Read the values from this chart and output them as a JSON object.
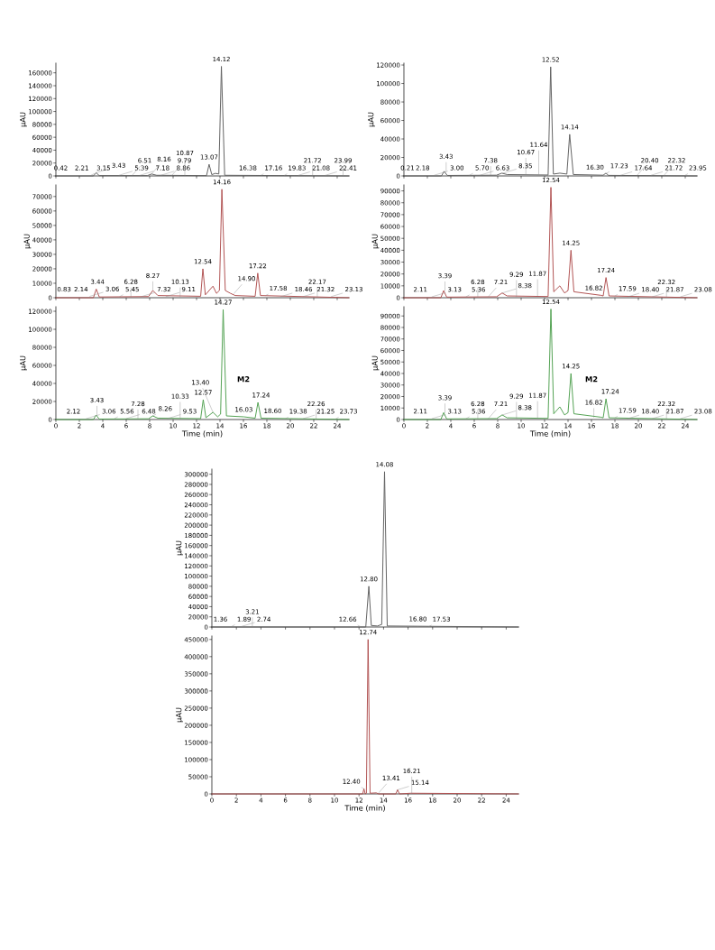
{
  "chart_data": [
    {
      "type": "line",
      "ylabel": "µAU",
      "tick_labels": "y",
      "grid": false,
      "legend": false,
      "xlim": [
        0,
        25
      ],
      "xticks": [
        0,
        2,
        4,
        6,
        8,
        10,
        12,
        14,
        16,
        18,
        20,
        22,
        24
      ],
      "ylim": [
        0,
        175000
      ],
      "yticks": [
        0,
        20000,
        40000,
        60000,
        80000,
        100000,
        120000,
        140000,
        160000
      ],
      "series": [
        {
          "color": "#606060",
          "x": [
            0,
            3.2,
            3.43,
            3.7,
            7.8,
            8.16,
            8.6,
            12.85,
            13.07,
            13.3,
            13.6,
            13.9,
            14.12,
            14.4,
            25
          ],
          "values": [
            0,
            0,
            5000,
            500,
            500,
            3000,
            1000,
            500,
            18000,
            2000,
            4000,
            3000,
            170000,
            1000,
            0
          ]
        }
      ],
      "annotations": [
        {
          "text": "0.42",
          "x": 0.42,
          "y": 1000
        },
        {
          "text": "2.21",
          "x": 2.21,
          "y": 1000
        },
        {
          "text": "3.15",
          "x": 3.0,
          "y": 1000
        },
        {
          "text": "3.43",
          "x": 3.43,
          "y": 5000
        },
        {
          "text": "5.39",
          "x": 5.39,
          "y": 1000
        },
        {
          "text": "6.51",
          "x": 6.51,
          "y": 1000
        },
        {
          "text": "7.18",
          "x": 7.18,
          "y": 1000
        },
        {
          "text": "8.16",
          "x": 8.16,
          "y": 3000
        },
        {
          "text": "8.86",
          "x": 8.95,
          "y": 1000
        },
        {
          "text": "9.79",
          "x": 9.9,
          "y": 1000
        },
        {
          "text": "10.87",
          "x": 11.0,
          "y": 1000
        },
        {
          "text": "13.07",
          "x": 13.07,
          "y": 18000
        },
        {
          "text": "14.12",
          "x": 14.12,
          "y": 170000
        },
        {
          "text": "16.38",
          "x": 16.38,
          "y": 1000
        },
        {
          "text": "17.16",
          "x": 17.5,
          "y": 1000
        },
        {
          "text": "19.83",
          "x": 19.5,
          "y": 1000
        },
        {
          "text": "21.08",
          "x": 20.7,
          "y": 1000
        },
        {
          "text": "21.72",
          "x": 21.9,
          "y": 1000
        },
        {
          "text": "22.41",
          "x": 23.0,
          "y": 1000
        },
        {
          "text": "23.99",
          "x": 24.5,
          "y": 1000
        }
      ]
    },
    {
      "type": "line",
      "ylabel": "µAU",
      "tick_labels": "y",
      "grid": false,
      "legend": false,
      "xlim": [
        0,
        25
      ],
      "xticks": [
        0,
        2,
        4,
        6,
        8,
        10,
        12,
        14,
        16,
        18,
        20,
        22,
        24
      ],
      "ylim": [
        0,
        78000
      ],
      "yticks": [
        0,
        10000,
        20000,
        30000,
        40000,
        50000,
        60000,
        70000
      ],
      "series": [
        {
          "color": "#b05050",
          "x": [
            0,
            3.2,
            3.44,
            3.7,
            7.9,
            8.27,
            8.7,
            12.35,
            12.54,
            12.75,
            13.4,
            13.7,
            13.95,
            14.16,
            14.45,
            14.9,
            15.3,
            17.0,
            17.22,
            17.45,
            25
          ],
          "values": [
            0,
            0,
            6000,
            500,
            800,
            5000,
            1500,
            1000,
            20000,
            2000,
            8000,
            3000,
            5000,
            75000,
            5000,
            3000,
            1500,
            1000,
            17000,
            1500,
            0
          ]
        }
      ],
      "annotations": [
        {
          "text": "0.83",
          "x": 0.7,
          "y": 800
        },
        {
          "text": "2.14",
          "x": 2.14,
          "y": 800
        },
        {
          "text": "3.06",
          "x": 2.9,
          "y": 1000
        },
        {
          "text": "3.44",
          "x": 3.55,
          "y": 6000
        },
        {
          "text": "5.45",
          "x": 5.45,
          "y": 800
        },
        {
          "text": "6.28",
          "x": 6.4,
          "y": 800
        },
        {
          "text": "7.32",
          "x": 7.3,
          "y": 800
        },
        {
          "text": "8.27",
          "x": 8.27,
          "y": 5000
        },
        {
          "text": "9.11",
          "x": 9.4,
          "y": 800
        },
        {
          "text": "10.13",
          "x": 10.6,
          "y": 800
        },
        {
          "text": "12.54",
          "x": 12.54,
          "y": 20000
        },
        {
          "text": "14.16",
          "x": 14.16,
          "y": 75000
        },
        {
          "text": "14.90",
          "x": 15.2,
          "y": 3000
        },
        {
          "text": "17.22",
          "x": 17.22,
          "y": 17000
        },
        {
          "text": "17.58",
          "x": 17.9,
          "y": 1500
        },
        {
          "text": "18.46",
          "x": 19.2,
          "y": 800
        },
        {
          "text": "21.32",
          "x": 21.1,
          "y": 800
        },
        {
          "text": "22.17",
          "x": 22.3,
          "y": 800
        },
        {
          "text": "23.13",
          "x": 23.5,
          "y": 800
        }
      ]
    },
    {
      "type": "line",
      "ylabel": "µAU",
      "xlabel": "Time (min)",
      "grid": false,
      "legend": false,
      "xlim": [
        0,
        25
      ],
      "xticks": [
        0,
        2,
        4,
        6,
        8,
        10,
        12,
        14,
        16,
        18,
        20,
        22,
        24
      ],
      "ylim": [
        0,
        125000
      ],
      "yticks": [
        0,
        20000,
        40000,
        60000,
        80000,
        100000,
        120000
      ],
      "series": [
        {
          "color": "#50a050",
          "x": [
            0,
            3.2,
            3.43,
            3.7,
            7.9,
            8.26,
            8.7,
            12.35,
            12.57,
            12.8,
            13.4,
            13.8,
            14.05,
            14.27,
            14.55,
            16.03,
            17.0,
            17.24,
            17.5,
            25
          ],
          "values": [
            0,
            0,
            5000,
            500,
            800,
            4000,
            1500,
            1000,
            22000,
            2000,
            8000,
            3000,
            6000,
            122000,
            4000,
            3000,
            1500,
            19000,
            1500,
            0
          ]
        }
      ],
      "annotations": [
        {
          "text": "2.12",
          "x": 1.5,
          "y": 1000
        },
        {
          "text": "3.06",
          "x": 2.6,
          "y": 1000
        },
        {
          "text": "3.43",
          "x": 3.5,
          "y": 5000
        },
        {
          "text": "5.56",
          "x": 5.0,
          "y": 1000
        },
        {
          "text": "6.48",
          "x": 6.0,
          "y": 1000
        },
        {
          "text": "7.28",
          "x": 7.0,
          "y": 1000
        },
        {
          "text": "8.26",
          "x": 8.26,
          "y": 4000
        },
        {
          "text": "9.53",
          "x": 9.5,
          "y": 1000
        },
        {
          "text": "10.33",
          "x": 10.6,
          "y": 1000
        },
        {
          "text": "12.57",
          "x": 12.57,
          "y": 22000
        },
        {
          "text": "13.40",
          "x": 13.4,
          "y": 8000
        },
        {
          "text": "14.27",
          "x": 14.27,
          "y": 122000
        },
        {
          "text": "16.03",
          "x": 16.03,
          "y": 3000
        },
        "M2",
        {
          "text": "17.24",
          "x": 17.5,
          "y": 19000
        },
        {
          "text": "18.60",
          "x": 18.5,
          "y": 1500
        },
        {
          "text": "19.38",
          "x": 19.6,
          "y": 1000
        },
        {
          "text": "21.25",
          "x": 21.1,
          "y": 1000
        },
        {
          "text": "22.26",
          "x": 22.2,
          "y": 1000
        },
        {
          "text": "23.73",
          "x": 23.9,
          "y": 1000
        }
      ]
    },
    {
      "type": "line",
      "ylabel": "µAU",
      "tick_labels": "y",
      "grid": false,
      "legend": false,
      "xlim": [
        0,
        25
      ],
      "xticks": [
        0,
        2,
        4,
        6,
        8,
        10,
        12,
        14,
        16,
        18,
        20,
        22,
        24
      ],
      "ylim": [
        0,
        122000
      ],
      "yticks": [
        0,
        20000,
        40000,
        60000,
        80000,
        100000,
        120000
      ],
      "series": [
        {
          "color": "#606060",
          "x": [
            0,
            3.2,
            3.43,
            3.7,
            7.9,
            8.35,
            8.8,
            12.3,
            12.52,
            12.75,
            13.3,
            13.9,
            14.14,
            14.45,
            17.0,
            17.23,
            17.45,
            25
          ],
          "values": [
            0,
            0,
            5000,
            500,
            800,
            3000,
            1500,
            1000,
            118000,
            2000,
            3000,
            2000,
            45000,
            1500,
            800,
            3000,
            600,
            0
          ]
        }
      ],
      "annotations": [
        {
          "text": "0.21",
          "x": 0.3,
          "y": 800
        },
        {
          "text": "2.18",
          "x": 1.6,
          "y": 800
        },
        {
          "text": "3.00",
          "x": 2.6,
          "y": 800
        },
        {
          "text": "3.43",
          "x": 3.6,
          "y": 5000
        },
        {
          "text": "5.70",
          "x": 5.6,
          "y": 800
        },
        {
          "text": "6.63",
          "x": 6.5,
          "y": 800
        },
        {
          "text": "7.38",
          "x": 7.4,
          "y": 800
        },
        {
          "text": "8.35",
          "x": 8.45,
          "y": 3000
        },
        {
          "text": "10.67",
          "x": 10.4,
          "y": 1500
        },
        {
          "text": "11.64",
          "x": 11.5,
          "y": 1500
        },
        {
          "text": "12.52",
          "x": 12.52,
          "y": 118000
        },
        {
          "text": "14.14",
          "x": 14.14,
          "y": 45000
        },
        {
          "text": "16.30",
          "x": 16.3,
          "y": 1500
        },
        {
          "text": "17.23",
          "x": 17.3,
          "y": 3000
        },
        {
          "text": "17.64",
          "x": 18.5,
          "y": 800
        },
        {
          "text": "20.40",
          "x": 19.9,
          "y": 800
        },
        {
          "text": "21.72",
          "x": 21.1,
          "y": 800
        },
        {
          "text": "22.32",
          "x": 22.2,
          "y": 800
        },
        {
          "text": "23.95",
          "x": 24.0,
          "y": 800
        }
      ]
    },
    {
      "type": "line",
      "ylabel": "µAU",
      "tick_labels": "y",
      "grid": false,
      "legend": false,
      "xlim": [
        0,
        25
      ],
      "xticks": [
        0,
        2,
        4,
        6,
        8,
        10,
        12,
        14,
        16,
        18,
        20,
        22,
        24
      ],
      "ylim": [
        0,
        95000
      ],
      "yticks": [
        0,
        10000,
        20000,
        30000,
        40000,
        50000,
        60000,
        70000,
        80000,
        90000
      ],
      "series": [
        {
          "color": "#b05050",
          "x": [
            0,
            3.15,
            3.39,
            3.65,
            7.9,
            8.38,
            8.8,
            12.3,
            12.54,
            12.78,
            13.3,
            13.7,
            14.0,
            14.25,
            14.5,
            16.82,
            17.0,
            17.24,
            17.5,
            25
          ],
          "values": [
            0,
            0,
            6000,
            500,
            800,
            4000,
            1500,
            1000,
            93000,
            5000,
            10000,
            4000,
            6000,
            40000,
            5000,
            2000,
            1500,
            17000,
            1500,
            0
          ]
        }
      ],
      "annotations": [
        {
          "text": "2.11",
          "x": 1.4,
          "y": 800
        },
        {
          "text": "3.13",
          "x": 2.4,
          "y": 800
        },
        {
          "text": "3.39",
          "x": 3.5,
          "y": 6000
        },
        {
          "text": "5.36",
          "x": 5.3,
          "y": 800
        },
        {
          "text": "6.28",
          "x": 6.3,
          "y": 800
        },
        {
          "text": "7.21",
          "x": 7.2,
          "y": 800
        },
        {
          "text": "8.38",
          "x": 8.4,
          "y": 4000
        },
        {
          "text": "9.29",
          "x": 9.6,
          "y": 800
        },
        {
          "text": "11.87",
          "x": 11.4,
          "y": 1500
        },
        {
          "text": "12.54",
          "x": 12.54,
          "y": 93000
        },
        {
          "text": "14.25",
          "x": 14.25,
          "y": 40000
        },
        {
          "text": "16.82",
          "x": 16.2,
          "y": 2000
        },
        {
          "text": "17.24",
          "x": 17.24,
          "y": 17000
        },
        {
          "text": "17.59",
          "x": 18.0,
          "y": 1500
        },
        {
          "text": "18.40",
          "x": 19.1,
          "y": 800
        },
        {
          "text": "21.87",
          "x": 21.2,
          "y": 800
        },
        {
          "text": "22.32",
          "x": 22.4,
          "y": 800
        },
        {
          "text": "23.08",
          "x": 23.6,
          "y": 800
        }
      ]
    },
    {
      "type": "line",
      "ylabel": "µAU",
      "xlabel": "Time (min)",
      "grid": false,
      "legend": false,
      "xlim": [
        0,
        25
      ],
      "xticks": [
        0,
        2,
        4,
        6,
        8,
        10,
        12,
        14,
        16,
        18,
        20,
        22,
        24
      ],
      "ylim": [
        0,
        98000
      ],
      "yticks": [
        0,
        10000,
        20000,
        30000,
        40000,
        50000,
        60000,
        70000,
        80000,
        90000
      ],
      "series": [
        {
          "color": "#50a050",
          "x": [
            0,
            3.15,
            3.39,
            3.65,
            7.9,
            8.38,
            8.8,
            12.3,
            12.54,
            12.78,
            13.3,
            13.7,
            14.0,
            14.25,
            14.5,
            16.82,
            17.0,
            17.24,
            17.5,
            25
          ],
          "values": [
            0,
            0,
            6000,
            500,
            800,
            4000,
            1500,
            1000,
            96000,
            5000,
            11000,
            4000,
            6000,
            40000,
            5000,
            2000,
            1500,
            18000,
            1500,
            0
          ]
        }
      ],
      "annotations": [
        {
          "text": "2.11",
          "x": 1.4,
          "y": 800
        },
        {
          "text": "3.13",
          "x": 2.4,
          "y": 800
        },
        {
          "text": "3.39",
          "x": 3.5,
          "y": 6000
        },
        {
          "text": "5.36",
          "x": 5.3,
          "y": 800
        },
        {
          "text": "6.28",
          "x": 6.3,
          "y": 800
        },
        {
          "text": "7.21",
          "x": 7.2,
          "y": 800
        },
        {
          "text": "8.38",
          "x": 8.4,
          "y": 4000
        },
        {
          "text": "9.29",
          "x": 9.6,
          "y": 800
        },
        {
          "text": "11.87",
          "x": 11.4,
          "y": 1500
        },
        {
          "text": "12.54",
          "x": 12.54,
          "y": 96000
        },
        {
          "text": "14.25",
          "x": 14.25,
          "y": 40000
        },
        {
          "text": "16.82",
          "x": 16.2,
          "y": 2000
        },
        "M2",
        {
          "text": "17.24",
          "x": 17.6,
          "y": 18000
        },
        {
          "text": "17.59",
          "x": 18.0,
          "y": 1500
        },
        {
          "text": "18.40",
          "x": 19.1,
          "y": 800
        },
        {
          "text": "21.87",
          "x": 21.2,
          "y": 800
        },
        {
          "text": "22.32",
          "x": 22.4,
          "y": 800
        },
        {
          "text": "23.08",
          "x": 23.6,
          "y": 800
        }
      ]
    },
    {
      "type": "line",
      "ylabel": "µAU",
      "tick_labels": "y",
      "grid": false,
      "legend": false,
      "xlim": [
        0,
        25
      ],
      "xticks": [
        0,
        2,
        4,
        6,
        8,
        10,
        12,
        14,
        16,
        18,
        20,
        22,
        24
      ],
      "ylim": [
        0,
        310000
      ],
      "yticks": [
        0,
        20000,
        40000,
        60000,
        80000,
        100000,
        120000,
        140000,
        160000,
        180000,
        200000,
        220000,
        240000,
        260000,
        280000,
        300000
      ],
      "series": [
        {
          "color": "#606060",
          "x": [
            0,
            12.55,
            12.8,
            13.0,
            13.5,
            13.85,
            14.08,
            14.3,
            16.8,
            25
          ],
          "values": [
            0,
            0,
            80000,
            3000,
            2000,
            5000,
            305000,
            2000,
            1500,
            0
          ]
        }
      ],
      "annotations": [
        {
          "text": "1.36",
          "x": 0.7,
          "y": 1000
        },
        {
          "text": "1.89",
          "x": 1.6,
          "y": 1000
        },
        {
          "text": "2.74",
          "x": 2.4,
          "y": 1000
        },
        {
          "text": "3.21",
          "x": 3.3,
          "y": 1000
        },
        {
          "text": "12.66",
          "x": 12.1,
          "y": 1000
        },
        {
          "text": "12.80",
          "x": 12.8,
          "y": 80000
        },
        {
          "text": "14.08",
          "x": 14.08,
          "y": 305000
        },
        {
          "text": "16.80",
          "x": 16.8,
          "y": 1500
        },
        {
          "text": "17.53",
          "x": 17.7,
          "y": 1000
        }
      ]
    },
    {
      "type": "line",
      "ylabel": "µAU",
      "xlabel": "Time (min)",
      "grid": false,
      "legend": false,
      "xlim": [
        0,
        25
      ],
      "xticks": [
        0,
        2,
        4,
        6,
        8,
        10,
        12,
        14,
        16,
        18,
        20,
        22,
        24
      ],
      "ylim": [
        0,
        460000
      ],
      "yticks": [
        0,
        50000,
        100000,
        150000,
        200000,
        250000,
        300000,
        350000,
        400000,
        450000
      ],
      "series": [
        {
          "color": "#b05050",
          "x": [
            0,
            12.3,
            12.4,
            12.5,
            12.6,
            12.74,
            12.9,
            13.41,
            13.6,
            15.0,
            15.14,
            15.3,
            16.21,
            25
          ],
          "values": [
            0,
            0,
            15000,
            0,
            2000,
            450000,
            2000,
            3000,
            0,
            0,
            12000,
            0,
            2000,
            0
          ]
        }
      ],
      "annotations": [
        {
          "text": "12.40",
          "x": 12.4,
          "y": 15000
        },
        {
          "text": "12.74",
          "x": 12.74,
          "y": 450000
        },
        {
          "text": "13.41",
          "x": 13.6,
          "y": 3000
        },
        {
          "text": "15.14",
          "x": 15.14,
          "y": 12000
        },
        {
          "text": "16.21",
          "x": 16.3,
          "y": 2000
        }
      ]
    }
  ]
}
